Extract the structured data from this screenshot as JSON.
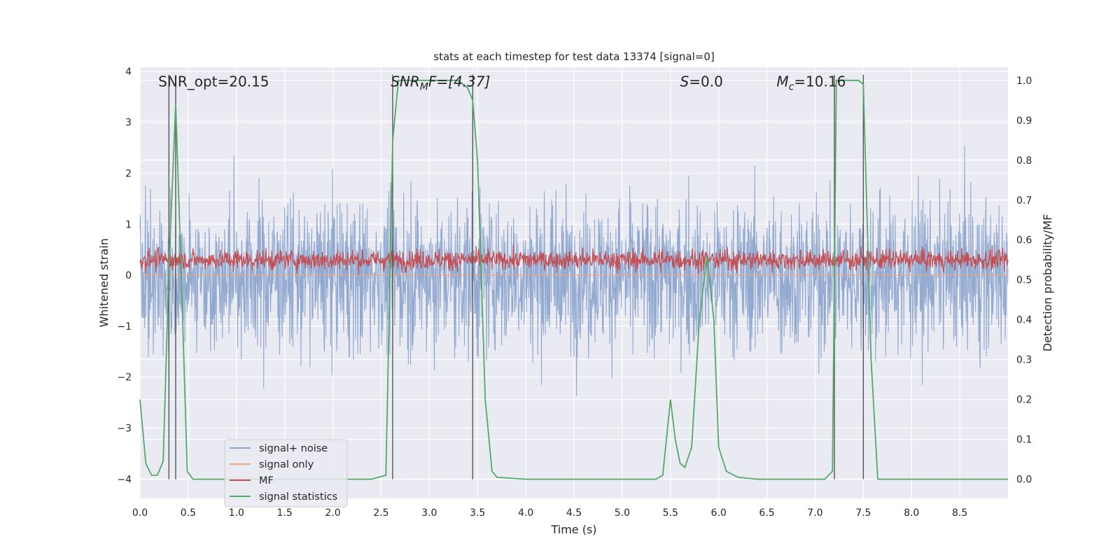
{
  "chart_data": {
    "type": "line",
    "title": "stats at each timestep for test data 13374 [signal=0]",
    "xlabel": "Time (s)",
    "ylabel_left": "Whitened strain",
    "ylabel_right": "Detection probability/MF",
    "xlim": [
      0.0,
      9.0
    ],
    "ylim_left": [
      -4.38,
      4.08
    ],
    "ylim_right": [
      -0.048,
      1.033
    ],
    "xticks": [
      "0.0",
      "0.5",
      "1.0",
      "1.5",
      "2.0",
      "2.5",
      "3.0",
      "3.5",
      "4.0",
      "4.5",
      "5.0",
      "5.5",
      "6.0",
      "6.5",
      "7.0",
      "7.5",
      "8.0",
      "8.5"
    ],
    "yticks_left": [
      "−4",
      "−3",
      "−2",
      "−1",
      "0",
      "1",
      "2",
      "3",
      "4"
    ],
    "yticks_right": [
      "0.0",
      "0.1",
      "0.2",
      "0.3",
      "0.4",
      "0.5",
      "0.6",
      "0.7",
      "0.8",
      "0.9",
      "1.0"
    ],
    "grid": true,
    "annotations": [
      {
        "name": "snr-opt-annotation",
        "text": "SNR_opt=20.15",
        "x": 0.19,
        "y": 3.8
      },
      {
        "name": "snr-mf-annotation",
        "text": "SNR",
        "sub": "M",
        "rest": "F=[4.37]",
        "italic": true,
        "x": 2.6,
        "y": 3.8
      },
      {
        "name": "s-annotation",
        "text": "S",
        "rest": "=0.0",
        "italic": true,
        "x": 5.6,
        "y": 3.8
      },
      {
        "name": "mc-annotation",
        "text": "M",
        "sub": "c",
        "rest": "=10.16",
        "italic": true,
        "x": 6.6,
        "y": 3.8
      }
    ],
    "vlines_x": [
      0.3,
      0.37,
      2.62,
      3.45,
      7.2,
      7.5
    ],
    "series": [
      {
        "name": "signal+ noise",
        "axis": "left",
        "color": "#8da5cd",
        "description": "dense noisy whitened strain roughly between -3.3 and 3.4",
        "noise_max": 3.4,
        "noise_min": -3.3
      },
      {
        "name": "signal only",
        "axis": "left",
        "color": "#e8a88a",
        "x": [
          0.0,
          9.0
        ],
        "values": [
          0.0,
          0.0
        ]
      },
      {
        "name": "MF",
        "axis": "left",
        "color": "#c44e52",
        "description": "dense noisy matched-filter output roughly between 0 and 0.8",
        "band_low": 0.0,
        "band_high": 0.8
      },
      {
        "name": "signal statistics",
        "axis": "right",
        "color": "#55a868",
        "x": [
          0.0,
          0.06,
          0.12,
          0.18,
          0.24,
          0.3,
          0.37,
          0.43,
          0.49,
          0.55,
          1.0,
          2.0,
          2.4,
          2.55,
          2.62,
          2.68,
          2.75,
          3.0,
          3.3,
          3.4,
          3.45,
          3.5,
          3.58,
          3.65,
          3.7,
          4.0,
          5.0,
          5.35,
          5.42,
          5.5,
          5.55,
          5.6,
          5.65,
          5.72,
          5.8,
          5.88,
          5.95,
          6.0,
          6.08,
          6.2,
          6.4,
          7.1,
          7.18,
          7.22,
          7.3,
          7.45,
          7.5,
          7.58,
          7.65,
          8.0,
          9.0
        ],
        "values": [
          0.2,
          0.04,
          0.01,
          0.01,
          0.045,
          0.53,
          0.94,
          0.5,
          0.02,
          0.0,
          0.0,
          0.0,
          0.0,
          0.01,
          0.85,
          1.0,
          1.0,
          1.0,
          1.0,
          0.98,
          0.95,
          0.8,
          0.2,
          0.02,
          0.005,
          0.0,
          0.0,
          0.0,
          0.01,
          0.2,
          0.1,
          0.04,
          0.03,
          0.08,
          0.4,
          0.56,
          0.4,
          0.08,
          0.02,
          0.005,
          0.0,
          0.0,
          0.02,
          1.0,
          1.0,
          1.0,
          0.99,
          0.3,
          0.0,
          0.0,
          0.0
        ]
      }
    ],
    "legend": {
      "placement": "lower-left",
      "entries": [
        "signal+ noise",
        "signal only",
        "MF",
        "signal statistics"
      ]
    }
  }
}
